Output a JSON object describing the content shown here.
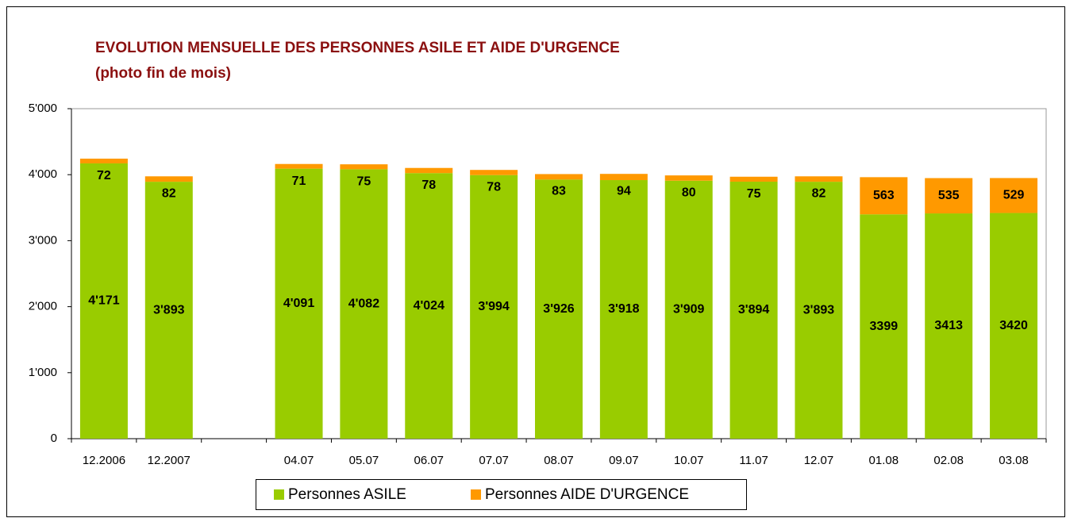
{
  "chart_data": {
    "type": "stacked_bar",
    "title": "EVOLUTION MENSUELLE DES PERSONNES  ASILE ET AIDE D'URGENCE",
    "subtitle": "(photo fin de mois)",
    "categories": [
      "12.2006",
      "12.2007",
      null,
      "04.07",
      "05.07",
      "06.07",
      "07.07",
      "08.07",
      "09.07",
      "10.07",
      "11.07",
      "12.07",
      "01.08",
      "02.08",
      "03.08"
    ],
    "series": [
      {
        "name": "Personnes ASILE",
        "color": "#99cc00",
        "values": [
          4171,
          3893,
          null,
          4091,
          4082,
          4024,
          3994,
          3926,
          3918,
          3909,
          3894,
          3893,
          3399,
          3413,
          3420
        ],
        "value_labels": [
          "4'171",
          "3'893",
          null,
          "4'091",
          "4'082",
          "4'024",
          "3'994",
          "3'926",
          "3'918",
          "3'909",
          "3'894",
          "3'893",
          "3399",
          "3413",
          "3420"
        ]
      },
      {
        "name": "Personnes AIDE D'URGENCE",
        "color": "#ff9900",
        "values": [
          72,
          82,
          null,
          71,
          75,
          78,
          78,
          83,
          94,
          80,
          75,
          82,
          563,
          535,
          529
        ]
      }
    ],
    "ylim": [
      0,
      5000
    ],
    "yticks": [
      0,
      {
        "value": 1000,
        "label": "1'000"
      },
      {
        "value": 2000,
        "label": "2'000"
      },
      {
        "value": 3000,
        "label": "3'000"
      },
      {
        "value": 4000,
        "label": "4'000"
      },
      {
        "value": 5000,
        "label": "5'000"
      }
    ],
    "legend": "bottom"
  }
}
